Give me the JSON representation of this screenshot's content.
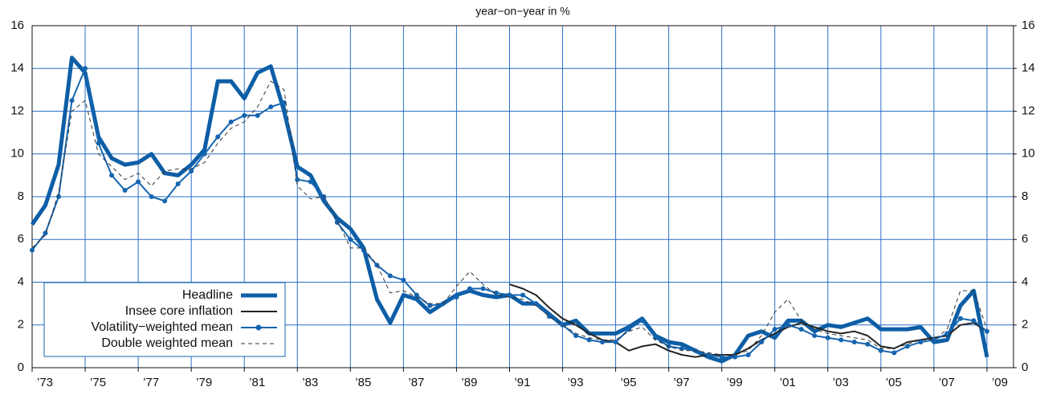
{
  "chart_data": {
    "type": "line",
    "title": "year−on−year in %",
    "x": [
      1973,
      1973.5,
      1974,
      1974.5,
      1975,
      1975.5,
      1976,
      1976.5,
      1977,
      1977.5,
      1978,
      1978.5,
      1979,
      1979.5,
      1980,
      1980.5,
      1981,
      1981.5,
      1982,
      1982.5,
      1983,
      1983.5,
      1984,
      1984.5,
      1985,
      1985.5,
      1986,
      1986.5,
      1987,
      1987.5,
      1988,
      1988.5,
      1989,
      1989.5,
      1990,
      1990.5,
      1991,
      1991.5,
      1992,
      1992.5,
      1993,
      1993.5,
      1994,
      1994.5,
      1995,
      1995.5,
      1996,
      1996.5,
      1997,
      1997.5,
      1998,
      1998.5,
      1999,
      1999.5,
      2000,
      2000.5,
      2001,
      2001.5,
      2002,
      2002.5,
      2003,
      2003.5,
      2004,
      2004.5,
      2005,
      2005.5,
      2006,
      2006.5,
      2007,
      2007.5,
      2008,
      2008.5,
      2009
    ],
    "series": [
      {
        "name": "Headline",
        "color": "#0d5ea6",
        "width": 5,
        "values": [
          6.7,
          7.6,
          9.5,
          14.5,
          13.8,
          10.8,
          9.8,
          9.5,
          9.6,
          10.0,
          9.1,
          9.0,
          9.5,
          10.2,
          13.4,
          13.4,
          12.6,
          13.8,
          14.1,
          12.0,
          9.4,
          9.0,
          7.8,
          7.0,
          6.5,
          5.6,
          3.2,
          2.1,
          3.4,
          3.2,
          2.6,
          3.0,
          3.4,
          3.6,
          3.4,
          3.3,
          3.4,
          3.0,
          3.0,
          2.5,
          2.0,
          2.2,
          1.6,
          1.6,
          1.6,
          1.9,
          2.3,
          1.5,
          1.2,
          1.1,
          0.8,
          0.5,
          0.3,
          0.6,
          1.5,
          1.7,
          1.4,
          2.2,
          2.2,
          1.7,
          2.0,
          1.9,
          2.1,
          2.3,
          1.8,
          1.8,
          1.8,
          1.9,
          1.2,
          1.3,
          2.9,
          3.6,
          0.5
        ]
      },
      {
        "name": "Insee core inflation",
        "color": "#222222",
        "width": 2,
        "values": [
          null,
          null,
          null,
          null,
          null,
          null,
          null,
          null,
          null,
          null,
          null,
          null,
          null,
          null,
          null,
          null,
          null,
          null,
          null,
          null,
          null,
          null,
          null,
          null,
          null,
          null,
          null,
          null,
          null,
          null,
          null,
          null,
          null,
          null,
          null,
          null,
          3.9,
          3.7,
          3.4,
          2.8,
          2.3,
          2.0,
          1.6,
          1.3,
          1.2,
          0.8,
          1.0,
          1.1,
          0.8,
          0.6,
          0.5,
          0.6,
          0.6,
          0.6,
          0.9,
          1.3,
          1.6,
          1.9,
          2.1,
          1.9,
          1.7,
          1.6,
          1.7,
          1.5,
          1.0,
          0.9,
          1.2,
          1.3,
          1.4,
          1.5,
          2.0,
          2.1,
          1.7
        ]
      },
      {
        "name": "Volatility−weighted mean",
        "color": "#1565b0",
        "width": 2,
        "marker": true,
        "values": [
          5.5,
          6.3,
          8.0,
          12.5,
          14.0,
          10.5,
          9.0,
          8.3,
          8.7,
          8.0,
          7.8,
          8.6,
          9.2,
          10.0,
          10.8,
          11.5,
          11.8,
          11.8,
          12.2,
          12.4,
          8.8,
          8.7,
          8.0,
          6.8,
          6.0,
          5.5,
          4.8,
          4.3,
          4.1,
          3.4,
          2.9,
          3.0,
          3.3,
          3.7,
          3.7,
          3.5,
          3.4,
          3.4,
          3.0,
          2.4,
          2.0,
          1.5,
          1.3,
          1.2,
          1.2,
          1.8,
          2.2,
          1.4,
          1.0,
          0.9,
          0.8,
          0.6,
          0.5,
          0.5,
          0.6,
          1.2,
          1.8,
          2.0,
          1.8,
          1.5,
          1.4,
          1.3,
          1.2,
          1.1,
          0.8,
          0.7,
          1.0,
          1.2,
          1.3,
          1.6,
          2.3,
          2.2,
          1.7
        ]
      },
      {
        "name": "Double weighted mean",
        "color": "#333333",
        "width": 1,
        "dash": true,
        "values": [
          5.6,
          6.2,
          8.2,
          12.0,
          12.5,
          10.0,
          9.4,
          8.8,
          9.1,
          8.5,
          9.2,
          9.3,
          9.3,
          9.6,
          10.5,
          11.2,
          11.5,
          12.2,
          13.4,
          13.0,
          8.5,
          7.9,
          8.0,
          6.9,
          5.6,
          5.6,
          4.8,
          3.5,
          3.6,
          3.3,
          3.0,
          3.0,
          3.8,
          4.5,
          3.9,
          3.4,
          3.3,
          3.2,
          2.9,
          2.4,
          2.0,
          1.6,
          1.4,
          1.3,
          1.3,
          1.7,
          1.9,
          1.3,
          1.0,
          0.8,
          0.8,
          0.7,
          0.6,
          0.6,
          0.8,
          1.5,
          2.6,
          3.2,
          2.2,
          1.8,
          1.6,
          1.5,
          1.4,
          1.3,
          0.9,
          0.9,
          1.1,
          1.3,
          1.3,
          1.8,
          3.6,
          3.6,
          1.8
        ]
      }
    ],
    "xlim": [
      1973,
      2010
    ],
    "xticks": [
      {
        "value": 1973,
        "label": "’73"
      },
      {
        "value": 1975,
        "label": "’75"
      },
      {
        "value": 1977,
        "label": "’77"
      },
      {
        "value": 1979,
        "label": "’79"
      },
      {
        "value": 1981,
        "label": "’81"
      },
      {
        "value": 1983,
        "label": "’83"
      },
      {
        "value": 1985,
        "label": "’85"
      },
      {
        "value": 1987,
        "label": "’87"
      },
      {
        "value": 1989,
        "label": "’89"
      },
      {
        "value": 1991,
        "label": "’91"
      },
      {
        "value": 1993,
        "label": "’93"
      },
      {
        "value": 1995,
        "label": "’95"
      },
      {
        "value": 1997,
        "label": "’97"
      },
      {
        "value": 1999,
        "label": "’99"
      },
      {
        "value": 2001,
        "label": "’01"
      },
      {
        "value": 2003,
        "label": "’03"
      },
      {
        "value": 2005,
        "label": "’05"
      },
      {
        "value": 2007,
        "label": "’07"
      },
      {
        "value": 2009,
        "label": "’09"
      }
    ],
    "ylim": [
      0,
      16
    ],
    "yticks": [
      0,
      2,
      4,
      6,
      8,
      10,
      12,
      14,
      16
    ],
    "y2lim": [
      0,
      16
    ],
    "y2ticks": [
      0,
      2,
      4,
      6,
      8,
      10,
      12,
      14,
      16
    ],
    "grid": true,
    "grid_color": "#2a6fc4",
    "legend": "lower left"
  }
}
